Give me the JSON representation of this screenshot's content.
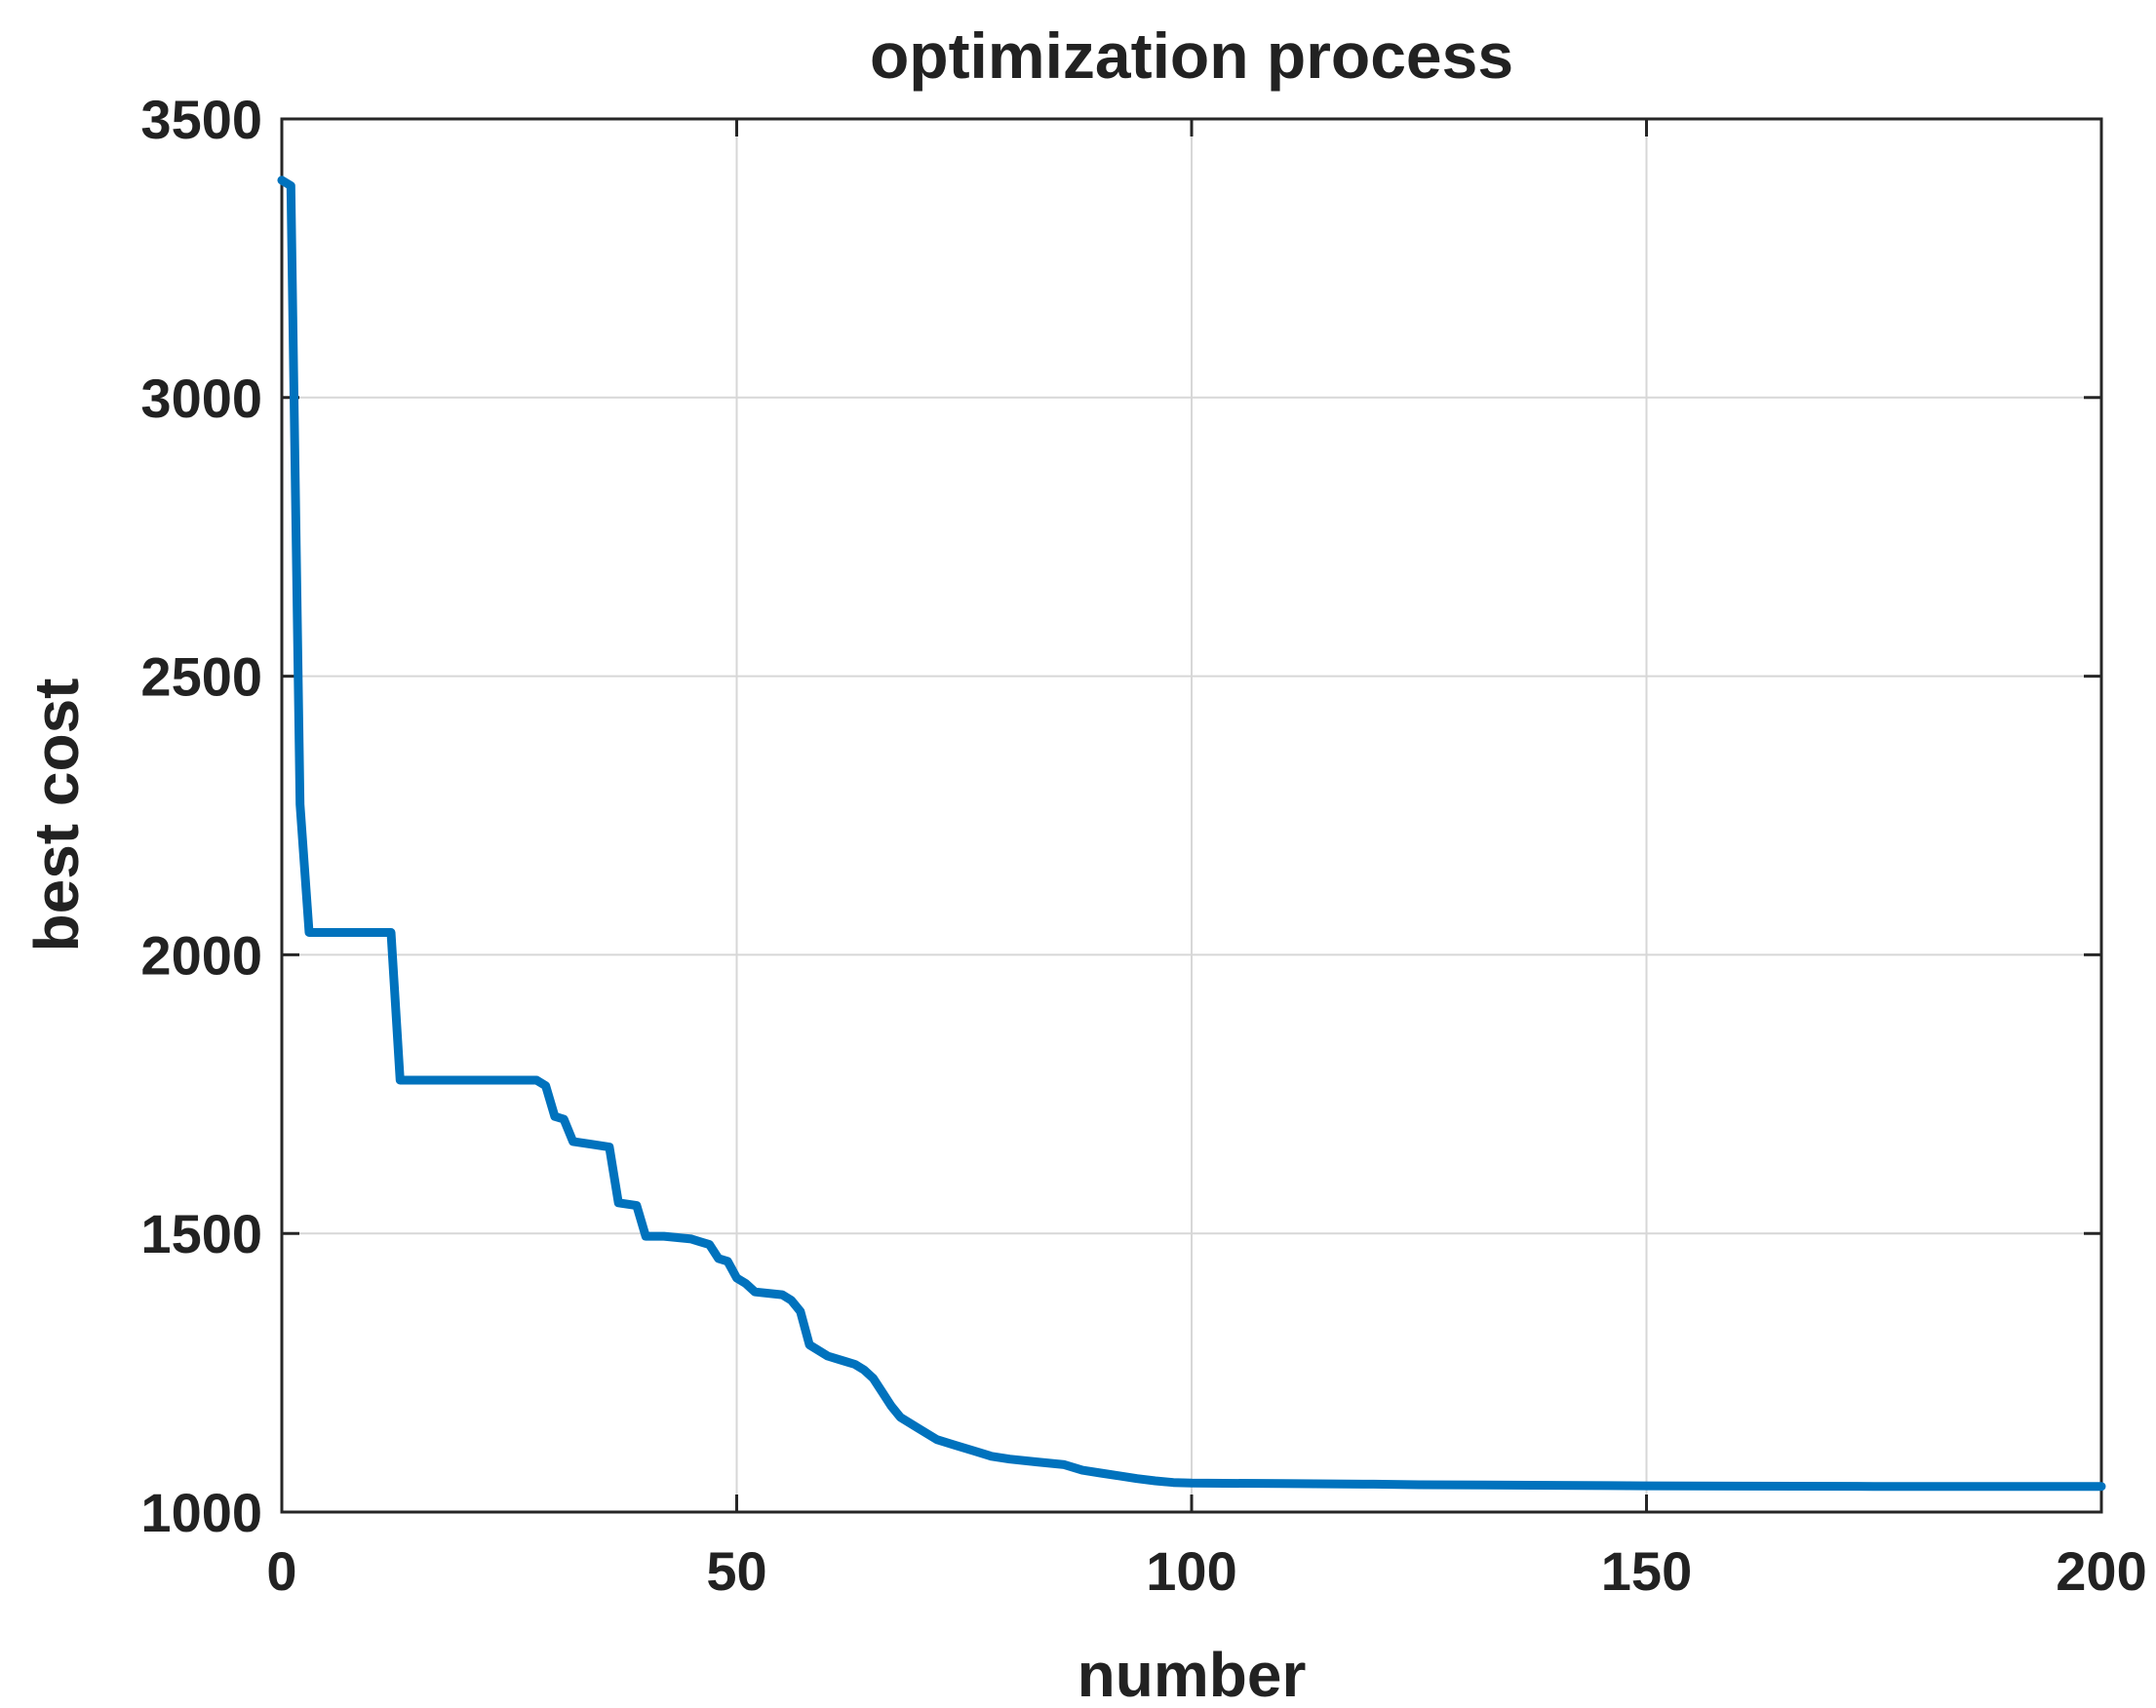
{
  "chart_data": {
    "type": "line",
    "title": "optimization process",
    "xlabel": "number",
    "ylabel": "best cost",
    "xlim": [
      0,
      200
    ],
    "ylim": [
      1000,
      3500
    ],
    "xticks": [
      "0",
      "50",
      "100",
      "150",
      "200"
    ],
    "yticks": [
      "1000",
      "1500",
      "2000",
      "2500",
      "3000",
      "3500"
    ],
    "grid": true,
    "color": "#0072BD",
    "series": [
      {
        "x": [
          0,
          1,
          2,
          3,
          12,
          13,
          28,
          29,
          30,
          31,
          32,
          34,
          36,
          37,
          39,
          40,
          42,
          45,
          46,
          47,
          48,
          49,
          50,
          51,
          52,
          55,
          56,
          57,
          58,
          60,
          62,
          63,
          64,
          65,
          66,
          67,
          68,
          70,
          72,
          74,
          76,
          78,
          80,
          83,
          86,
          88,
          90,
          92,
          94,
          96,
          98,
          100,
          110,
          120,
          125,
          140,
          150,
          175,
          200
        ],
        "y": [
          3390,
          3380,
          2270,
          2040,
          2040,
          1775,
          1775,
          1765,
          1710,
          1705,
          1665,
          1660,
          1655,
          1555,
          1550,
          1495,
          1495,
          1490,
          1485,
          1480,
          1455,
          1450,
          1420,
          1410,
          1395,
          1390,
          1380,
          1360,
          1300,
          1280,
          1270,
          1265,
          1255,
          1240,
          1215,
          1190,
          1170,
          1150,
          1130,
          1120,
          1110,
          1100,
          1095,
          1090,
          1085,
          1075,
          1070,
          1065,
          1060,
          1056,
          1053,
          1052,
          1051,
          1050,
          1049,
          1048,
          1047,
          1046,
          1046
        ]
      }
    ]
  }
}
